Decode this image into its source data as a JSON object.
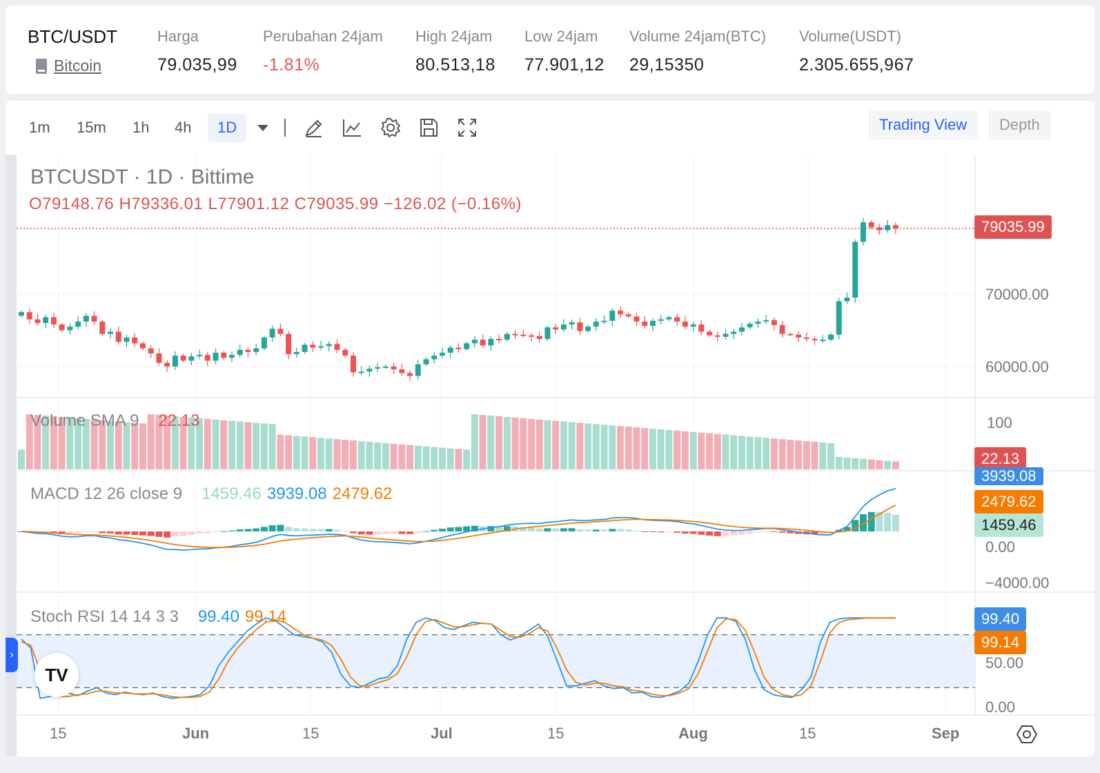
{
  "ticker": {
    "pair": "BTC/USDT",
    "coin_name": "Bitcoin",
    "stats": [
      {
        "label": "Harga",
        "value": "79.035,99",
        "negative": false
      },
      {
        "label": "Perubahan 24jam",
        "value": "-1.81%",
        "negative": true
      },
      {
        "label": "High 24jam",
        "value": "80.513,18",
        "negative": false
      },
      {
        "label": "Low 24jam",
        "value": "77.901,12",
        "negative": false
      },
      {
        "label": "Volume 24jam(BTC)",
        "value": "29,15350",
        "negative": false
      },
      {
        "label": "Volume(USDT)",
        "value": "2.305.655,967",
        "negative": false
      }
    ]
  },
  "toolbar": {
    "timeframes": [
      "1m",
      "15m",
      "1h",
      "4h",
      "1D"
    ],
    "active_timeframe": "1D",
    "icons": [
      "chevron-down-icon",
      "pencil-icon",
      "indicator-chart-icon",
      "gear-icon",
      "save-icon",
      "fullscreen-icon"
    ],
    "trading_view_label": "Trading View",
    "depth_label": "Depth"
  },
  "chart": {
    "title": "BTCUSDT · 1D · Bittime",
    "ohlc": "O79148.76 H79336.01 L77901.12 C79035.99 −126.02 (−0.16%)",
    "last_price_tag": "79035.99",
    "price_axis": [
      "70000.00",
      "60000.00"
    ],
    "volume_label": "Volume SMA 9",
    "volume_value": "22.13",
    "volume_axis": [
      "100"
    ],
    "volume_tag": "22.13",
    "macd_label": "MACD 12 26 close 9",
    "macd_values": [
      "1459.46",
      "3939.08",
      "2479.62"
    ],
    "macd_axis": [
      "0.00",
      "−4000.00"
    ],
    "macd_tags": [
      "3939.08",
      "2479.62",
      "1459.46"
    ],
    "stoch_label": "Stoch RSI 14 14 3 3",
    "stoch_values": [
      "99.40",
      "99.14"
    ],
    "stoch_axis": [
      "50.00",
      "0.00"
    ],
    "stoch_tags": [
      "99.40",
      "99.14"
    ],
    "x_labels": [
      "15",
      "Jun",
      "15",
      "Jul",
      "15",
      "Aug",
      "15",
      "Sep"
    ],
    "colors": {
      "up": "#26a69a",
      "down": "#ef5350",
      "macd": "#2196f3",
      "signal": "#f57c00",
      "tag_red": "#e05252"
    },
    "logo": "TV"
  },
  "chart_data": {
    "type": "candlestick",
    "x_start": "2024-05-10",
    "closes": [
      67500,
      66500,
      66000,
      66800,
      65800,
      65000,
      65500,
      66200,
      67000,
      66200,
      64500,
      64800,
      63400,
      64000,
      63200,
      62500,
      61800,
      60500,
      60000,
      61500,
      60800,
      61400,
      61600,
      60800,
      61900,
      61200,
      61600,
      62300,
      62000,
      62500,
      64000,
      65200,
      64500,
      61700,
      62000,
      63000,
      62600,
      62800,
      63100,
      62300,
      61500,
      59200,
      59300,
      59700,
      59900,
      60000,
      59600,
      59100,
      58700,
      60300,
      61000,
      61500,
      61900,
      62600,
      62400,
      63200,
      63700,
      62900,
      63800,
      63700,
      64500,
      64400,
      64300,
      64200,
      63800,
      65400,
      65100,
      65800,
      66100,
      64900,
      65500,
      66200,
      66300,
      67700,
      67200,
      66900,
      66200,
      65600,
      66300,
      66500,
      66800,
      66200,
      65500,
      65800,
      64800,
      64300,
      64100,
      64500,
      64800,
      65400,
      65900,
      66200,
      66400,
      65700,
      64500,
      64400,
      64000,
      63800,
      63700,
      63700,
      64400,
      69000,
      69500,
      77200,
      79900,
      79200,
      78800,
      79500,
      79036
    ],
    "stoch_k": [
      75,
      65,
      8,
      10,
      12,
      14,
      11,
      16,
      20,
      14,
      12,
      15,
      13,
      12,
      14,
      10,
      8,
      9,
      10,
      12,
      22,
      45,
      60,
      72,
      84,
      92,
      99,
      96,
      88,
      80,
      78,
      76,
      72,
      60,
      35,
      22,
      20,
      25,
      30,
      32,
      45,
      75,
      94,
      99,
      96,
      88,
      86,
      90,
      94,
      93,
      92,
      80,
      74,
      78,
      85,
      92,
      78,
      50,
      22,
      22,
      25,
      28,
      22,
      19,
      20,
      14,
      15,
      10,
      9,
      12,
      16,
      25,
      50,
      80,
      99,
      99,
      95,
      75,
      40,
      18,
      12,
      10,
      9,
      18,
      32,
      72,
      94,
      98,
      99,
      99,
      99,
      99,
      99,
      99
    ],
    "stoch_d": [
      72,
      68,
      40,
      18,
      10,
      10,
      12,
      13,
      16,
      16,
      14,
      14,
      13,
      13,
      13,
      12,
      10,
      9,
      9,
      10,
      15,
      30,
      50,
      65,
      76,
      86,
      94,
      97,
      94,
      87,
      80,
      76,
      74,
      68,
      52,
      32,
      22,
      22,
      26,
      29,
      36,
      55,
      80,
      95,
      97,
      93,
      89,
      89,
      91,
      93,
      92,
      85,
      78,
      77,
      81,
      88,
      84,
      64,
      40,
      26,
      23,
      25,
      25,
      22,
      21,
      17,
      16,
      13,
      11,
      11,
      14,
      19,
      36,
      62,
      88,
      98,
      97,
      85,
      60,
      32,
      18,
      12,
      10,
      12,
      22,
      50,
      82,
      94,
      97,
      98,
      99,
      99,
      99,
      99
    ]
  }
}
